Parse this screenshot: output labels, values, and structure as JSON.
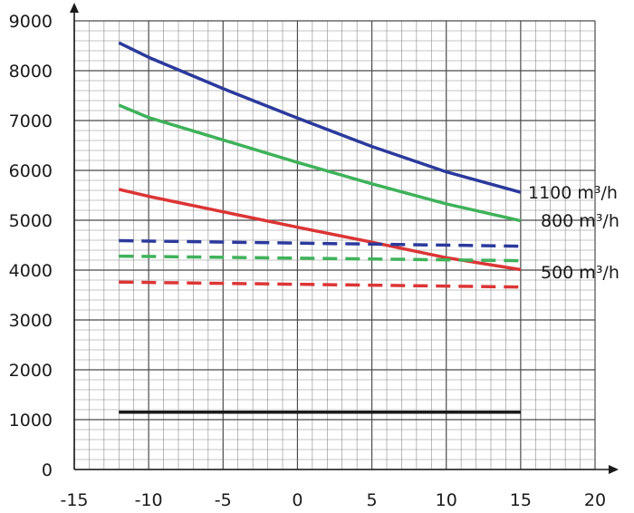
{
  "chart_data": {
    "type": "line",
    "title": "",
    "xlabel": "",
    "ylabel": "",
    "xlim": [
      -15,
      20
    ],
    "ylim": [
      0,
      9000
    ],
    "x_ticks": [
      -15,
      -10,
      -5,
      0,
      5,
      10,
      15,
      20
    ],
    "y_ticks": [
      0,
      1000,
      2000,
      3000,
      4000,
      5000,
      6000,
      7000,
      8000,
      9000
    ],
    "x_tick_labels": [
      "-15",
      "-10",
      "-5",
      "0",
      "5",
      "10",
      "15",
      "20"
    ],
    "y_tick_labels": [
      "0",
      "1000",
      "2000",
      "3000",
      "4000",
      "5000",
      "6000",
      "7000",
      "8000",
      "9000"
    ],
    "grid": {
      "major": true,
      "minor_x_step": 1,
      "minor_y_step": 200
    },
    "series": [
      {
        "name": "1100 m³/h",
        "color": "#2b3a9c",
        "dash": false,
        "x": [
          -12,
          -10,
          -5,
          0,
          5,
          10,
          15
        ],
        "y": [
          8560,
          8270,
          7640,
          7050,
          6480,
          5970,
          5560
        ]
      },
      {
        "color": "#3fb25a",
        "dash": false,
        "x": [
          -12,
          -10,
          -5,
          0,
          5,
          10,
          15
        ],
        "y": [
          7310,
          7060,
          6610,
          6160,
          5730,
          5330,
          4990
        ]
      },
      {
        "color": "#dc3535",
        "dash": false,
        "x": [
          -12,
          -10,
          -5,
          0,
          5,
          10,
          15
        ],
        "y": [
          5620,
          5480,
          5170,
          4860,
          4560,
          4250,
          4010
        ]
      },
      {
        "color": "#2b3a9c",
        "dash": true,
        "x": [
          -12,
          15
        ],
        "y": [
          4590,
          4480
        ]
      },
      {
        "color": "#3fb25a",
        "dash": true,
        "x": [
          -12,
          15
        ],
        "y": [
          4280,
          4190
        ]
      },
      {
        "color": "#dc3535",
        "dash": true,
        "x": [
          -12,
          15
        ],
        "y": [
          3760,
          3660
        ]
      },
      {
        "color": "#1a1a1a",
        "dash": false,
        "x": [
          -12,
          15
        ],
        "y": [
          1150,
          1150
        ]
      }
    ],
    "annotations": [
      {
        "text": "1100 m³/h",
        "series": 0
      },
      {
        "text": "800 m³/h",
        "series": 1
      },
      {
        "text": "500 m³/h",
        "series": 2
      }
    ]
  }
}
